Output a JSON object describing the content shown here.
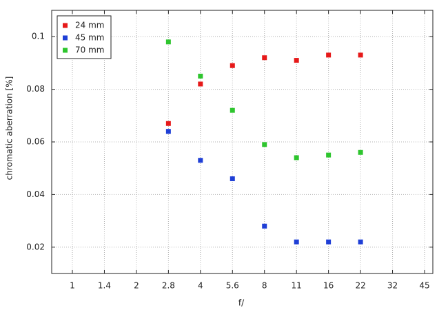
{
  "chart_data": {
    "type": "scatter",
    "categories": [
      "1",
      "1.4",
      "2",
      "2.8",
      "4",
      "5.6",
      "8",
      "11",
      "16",
      "22",
      "32",
      "45"
    ],
    "xlabel": "f/",
    "ylabel": "chromatic aberration [%]",
    "series": [
      {
        "name": "24 mm",
        "color": "#e61919",
        "values": [
          null,
          null,
          null,
          0.067,
          0.082,
          0.089,
          0.092,
          0.091,
          0.093,
          0.093,
          null,
          null
        ]
      },
      {
        "name": "45 mm",
        "color": "#1f3fd6",
        "values": [
          null,
          null,
          null,
          0.064,
          0.053,
          0.046,
          0.028,
          0.022,
          0.022,
          0.022,
          null,
          null
        ]
      },
      {
        "name": "70 mm",
        "color": "#2ec52e",
        "values": [
          null,
          null,
          null,
          0.098,
          0.085,
          0.072,
          0.059,
          0.054,
          0.055,
          0.056,
          null,
          null
        ]
      }
    ],
    "ylim": [
      0.01,
      0.11
    ],
    "yticks": [
      0.02,
      0.04,
      0.06,
      0.08,
      0.1
    ],
    "grid": true,
    "legend": "upper-left"
  }
}
